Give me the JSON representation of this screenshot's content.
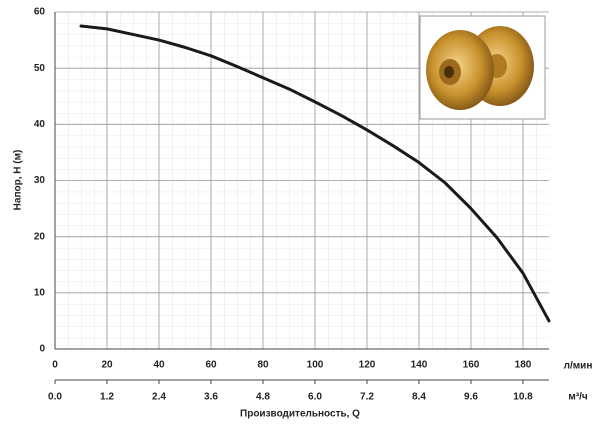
{
  "chart_data": {
    "type": "line",
    "y_label": "Напор, H (м)",
    "x_label": "Производительность, Q",
    "x_unit": "л/мин",
    "x2_unit": "м³/ч",
    "x": [
      10,
      20,
      30,
      40,
      50,
      60,
      70,
      80,
      90,
      100,
      110,
      120,
      130,
      140,
      150,
      160,
      170,
      180,
      190
    ],
    "series": [
      {
        "color": "#1a1a1a",
        "values": [
          57.5,
          57,
          56,
          55,
          53.7,
          52.2,
          50.3,
          48.3,
          46.3,
          44,
          41.6,
          39,
          36.2,
          33.2,
          29.6,
          25,
          19.8,
          13.5,
          5
        ]
      }
    ],
    "xlim": [
      0,
      190
    ],
    "ylim": [
      0,
      60
    ],
    "xticks": [
      0,
      20,
      40,
      60,
      80,
      100,
      120,
      140,
      160,
      180
    ],
    "yticks": [
      0,
      10,
      20,
      30,
      40,
      50,
      60
    ],
    "x2lim": [
      0,
      11.4
    ],
    "x2ticks": [
      {
        "value": 0,
        "label": "0.0"
      },
      1.2,
      2.4,
      3.6,
      4.8,
      {
        "value": 6,
        "label": "6.0"
      },
      7.2,
      8.4,
      9.6,
      10.8
    ],
    "grid": true
  }
}
